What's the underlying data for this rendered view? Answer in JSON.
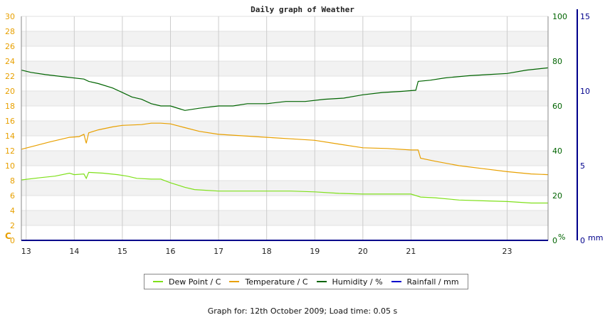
{
  "chart_data": {
    "type": "line",
    "title": "Daily graph of Weather",
    "x_range": [
      12.9,
      23.85
    ],
    "x_ticks": [
      13,
      14,
      15,
      16,
      17,
      18,
      19,
      20,
      21,
      23
    ],
    "left_axis": {
      "unit": "C",
      "range": [
        0,
        30
      ],
      "ticks": [
        0,
        2,
        4,
        6,
        8,
        10,
        12,
        14,
        16,
        18,
        20,
        22,
        24,
        26,
        28,
        30
      ],
      "color": "#e8a000"
    },
    "humidity_axis": {
      "unit": "%",
      "range": [
        0,
        100
      ],
      "ticks": [
        0,
        20,
        40,
        60,
        80,
        100
      ],
      "color": "#006400"
    },
    "rain_axis": {
      "unit": "mm",
      "range": [
        0,
        15
      ],
      "ticks": [
        0,
        5,
        10,
        15
      ],
      "color": "#00008b"
    },
    "grid": true,
    "series": [
      {
        "name": "Dew Point / C",
        "axis": "left",
        "color": "#7fe01a",
        "x": [
          12.9,
          13.3,
          13.6,
          13.9,
          14.0,
          14.2,
          14.25,
          14.3,
          14.6,
          14.9,
          15.1,
          15.3,
          15.6,
          15.8,
          16.0,
          16.3,
          16.5,
          17.0,
          17.5,
          18.0,
          18.5,
          19.0,
          19.5,
          20.0,
          20.5,
          21.0,
          21.2,
          21.5,
          22.0,
          22.5,
          23.0,
          23.5,
          23.85
        ],
        "y": [
          8.1,
          8.4,
          8.6,
          9.0,
          8.8,
          8.9,
          8.3,
          9.1,
          9.0,
          8.8,
          8.6,
          8.3,
          8.2,
          8.2,
          7.7,
          7.1,
          6.8,
          6.6,
          6.6,
          6.6,
          6.6,
          6.5,
          6.3,
          6.2,
          6.2,
          6.2,
          5.8,
          5.7,
          5.4,
          5.3,
          5.2,
          5.0,
          5.0
        ]
      },
      {
        "name": "Temperature / C",
        "axis": "left",
        "color": "#e8a000",
        "x": [
          12.9,
          13.2,
          13.5,
          13.9,
          14.1,
          14.2,
          14.25,
          14.3,
          14.5,
          14.8,
          15.0,
          15.4,
          15.6,
          15.8,
          16.0,
          16.3,
          16.6,
          17.0,
          17.5,
          18.0,
          18.5,
          19.0,
          19.5,
          20.0,
          20.5,
          21.0,
          21.15,
          21.2,
          21.5,
          22.0,
          22.5,
          23.0,
          23.5,
          23.85
        ],
        "y": [
          12.2,
          12.7,
          13.2,
          13.8,
          13.9,
          14.2,
          13.0,
          14.4,
          14.8,
          15.2,
          15.4,
          15.5,
          15.7,
          15.7,
          15.6,
          15.1,
          14.6,
          14.2,
          14.0,
          13.8,
          13.6,
          13.4,
          12.9,
          12.4,
          12.3,
          12.1,
          12.1,
          11.0,
          10.6,
          10.0,
          9.6,
          9.2,
          8.9,
          8.8
        ]
      },
      {
        "name": "Humidity / %",
        "axis": "humidity",
        "color": "#006400",
        "x": [
          12.9,
          13.1,
          13.4,
          13.8,
          14.2,
          14.3,
          14.5,
          14.8,
          15.0,
          15.2,
          15.4,
          15.6,
          15.8,
          16.0,
          16.3,
          16.6,
          17.0,
          17.3,
          17.6,
          18.0,
          18.4,
          18.8,
          19.2,
          19.6,
          20.0,
          20.4,
          20.8,
          21.1,
          21.15,
          21.4,
          21.7,
          22.2,
          22.6,
          23.0,
          23.4,
          23.85
        ],
        "y": [
          76,
          75,
          74,
          73,
          72,
          71,
          70,
          68,
          66,
          64,
          63,
          61,
          60,
          60,
          58,
          59,
          60,
          60,
          61,
          61,
          62,
          62,
          63,
          63.5,
          65,
          66,
          66.5,
          67,
          71,
          71.5,
          72.5,
          73.5,
          74,
          74.5,
          76,
          77
        ]
      },
      {
        "name": "Rainfall / mm",
        "axis": "rain",
        "color": "#0000cc",
        "x": [
          12.9,
          23.85
        ],
        "y": [
          0,
          0
        ]
      }
    ]
  },
  "footer": "Graph for: 12th October 2009; Load time: 0.05 s"
}
